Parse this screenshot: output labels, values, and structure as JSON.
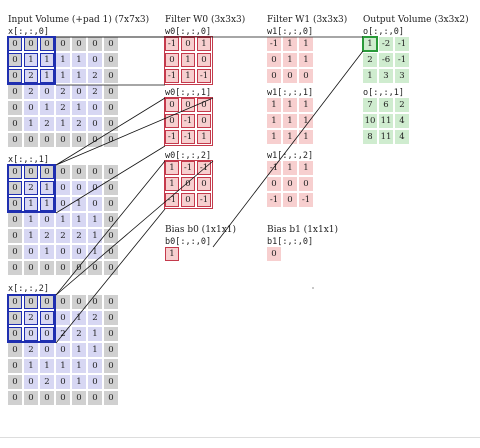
{
  "columns": {
    "input": "Input Volume (+pad 1) (7x7x3)",
    "w0": "Filter W0 (3x3x3)",
    "w1": "Filter W1 (3x3x3)",
    "out": "Output Volume (3x3x2)"
  },
  "input_slices": [
    {
      "label": "x[:,:,0]",
      "grid": [
        [
          0,
          0,
          0,
          0,
          0,
          0,
          0
        ],
        [
          0,
          1,
          1,
          1,
          1,
          0,
          0
        ],
        [
          0,
          2,
          1,
          1,
          1,
          2,
          0
        ],
        [
          0,
          2,
          0,
          2,
          0,
          2,
          0
        ],
        [
          0,
          0,
          1,
          2,
          1,
          0,
          0
        ],
        [
          0,
          1,
          2,
          1,
          2,
          0,
          0
        ],
        [
          0,
          0,
          0,
          0,
          0,
          0,
          0
        ]
      ]
    },
    {
      "label": "x[:,:,1]",
      "grid": [
        [
          0,
          0,
          0,
          0,
          0,
          0,
          0
        ],
        [
          0,
          2,
          1,
          0,
          0,
          0,
          0
        ],
        [
          0,
          1,
          1,
          0,
          1,
          0,
          0
        ],
        [
          0,
          1,
          0,
          1,
          1,
          1,
          0
        ],
        [
          0,
          1,
          2,
          2,
          2,
          1,
          0
        ],
        [
          0,
          0,
          1,
          0,
          0,
          1,
          0
        ],
        [
          0,
          0,
          0,
          0,
          0,
          0,
          0
        ]
      ]
    },
    {
      "label": "x[:,:,2]",
      "grid": [
        [
          0,
          0,
          0,
          0,
          0,
          0,
          0
        ],
        [
          0,
          2,
          0,
          0,
          1,
          2,
          0
        ],
        [
          0,
          0,
          0,
          2,
          2,
          1,
          0
        ],
        [
          0,
          2,
          0,
          0,
          1,
          1,
          0
        ],
        [
          0,
          1,
          1,
          1,
          1,
          0,
          0
        ],
        [
          0,
          0,
          2,
          0,
          1,
          0,
          0
        ],
        [
          0,
          0,
          0,
          0,
          0,
          0,
          0
        ]
      ]
    }
  ],
  "w0_slices": [
    {
      "label": "w0[:,:,0]",
      "grid": [
        [
          -1,
          0,
          1
        ],
        [
          0,
          1,
          0
        ],
        [
          -1,
          1,
          -1
        ]
      ]
    },
    {
      "label": "w0[:,:,1]",
      "grid": [
        [
          0,
          0,
          0
        ],
        [
          0,
          -1,
          0
        ],
        [
          -1,
          -1,
          1
        ]
      ]
    },
    {
      "label": "w0[:,:,2]",
      "grid": [
        [
          1,
          -1,
          -1
        ],
        [
          1,
          0,
          0
        ],
        [
          -1,
          0,
          -1
        ]
      ]
    }
  ],
  "w1_slices": [
    {
      "label": "w1[:,:,0]",
      "grid": [
        [
          -1,
          1,
          1
        ],
        [
          0,
          1,
          1
        ],
        [
          0,
          0,
          0
        ]
      ]
    },
    {
      "label": "w1[:,:,1]",
      "grid": [
        [
          1,
          1,
          1
        ],
        [
          1,
          1,
          1
        ],
        [
          1,
          1,
          1
        ]
      ]
    },
    {
      "label": "w1[:,:,2]",
      "grid": [
        [
          -1,
          1,
          1
        ],
        [
          0,
          0,
          0
        ],
        [
          -1,
          0,
          -1
        ]
      ]
    }
  ],
  "bias0": {
    "title": "Bias b0 (1x1x1)",
    "label": "b0[:,:,0]",
    "value": 1
  },
  "bias1": {
    "title": "Bias b1 (1x1x1)",
    "label": "b1[:,:,0]",
    "value": 0
  },
  "out_slices": [
    {
      "label": "o[:,:,0]",
      "grid": [
        [
          1,
          -2,
          -1
        ],
        [
          2,
          -6,
          -1
        ],
        [
          1,
          3,
          3
        ]
      ]
    },
    {
      "label": "o[:,:,1]",
      "grid": [
        [
          7,
          6,
          2
        ],
        [
          10,
          11,
          4
        ],
        [
          8,
          11,
          4
        ]
      ]
    }
  ],
  "colors": {
    "pad": "#d0d0d0",
    "input_value": "#d7d7f3",
    "weight": "#f7cfcf",
    "output": "#cfeccf",
    "input_highlight": "#1f2fb0",
    "weight_highlight": "#c43a4c",
    "output_highlight": "#2a9a3a",
    "link_line": "#111111"
  }
}
